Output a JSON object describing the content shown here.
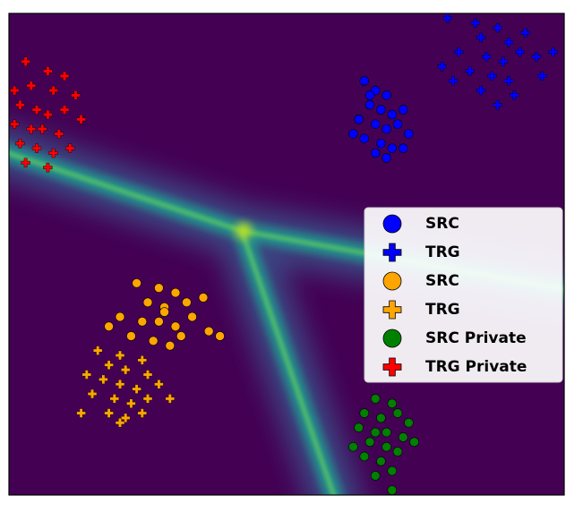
{
  "chart_data": {
    "type": "scatter",
    "xlim": [
      0,
      100
    ],
    "ylim": [
      0,
      100
    ],
    "legend": "right",
    "series": [
      {
        "name": "SRC",
        "color": "#0000ff",
        "marker": "circle",
        "x": [
          64,
          66,
          68,
          65,
          67,
          69,
          71,
          63,
          66,
          68,
          70,
          72,
          64,
          67,
          69,
          62,
          66,
          68,
          71,
          65
        ],
        "y": [
          86,
          84,
          83,
          81,
          80,
          79,
          80,
          78,
          77,
          76,
          77,
          75,
          74,
          73,
          72,
          75,
          71,
          70,
          72,
          83
        ]
      },
      {
        "name": "TRG",
        "color": "#0000ff",
        "marker": "plus",
        "x": [
          79,
          84,
          88,
          85,
          90,
          93,
          81,
          86,
          89,
          92,
          95,
          78,
          83,
          87,
          90,
          96,
          85,
          91,
          88,
          98,
          80
        ],
        "y": [
          99,
          98,
          97,
          95,
          94,
          96,
          92,
          91,
          90,
          92,
          91,
          89,
          88,
          87,
          86,
          87,
          84,
          83,
          81,
          92,
          86
        ]
      },
      {
        "name": "SRC",
        "color": "#ffa500",
        "marker": "circle",
        "x": [
          23,
          27,
          30,
          25,
          28,
          32,
          35,
          20,
          24,
          27,
          30,
          33,
          36,
          22,
          26,
          29,
          31,
          38,
          18,
          28
        ],
        "y": [
          44,
          43,
          42,
          40,
          39,
          40,
          41,
          37,
          36,
          36,
          35,
          37,
          34,
          33,
          32,
          31,
          33,
          33,
          35,
          38
        ]
      },
      {
        "name": "TRG",
        "color": "#ffa500",
        "marker": "plus",
        "x": [
          16,
          20,
          24,
          18,
          21,
          25,
          14,
          17,
          20,
          23,
          27,
          15,
          19,
          22,
          25,
          29,
          18,
          21,
          24,
          13,
          20
        ],
        "y": [
          30,
          29,
          28,
          27,
          26,
          25,
          25,
          24,
          23,
          22,
          23,
          21,
          20,
          19,
          20,
          20,
          17,
          16,
          17,
          17,
          15
        ]
      },
      {
        "name": "SRC Private",
        "color": "#008000",
        "marker": "circle",
        "x": [
          66,
          69,
          64,
          67,
          70,
          72,
          63,
          66,
          68,
          71,
          65,
          68,
          70,
          73,
          64,
          67,
          69,
          66,
          69,
          62
        ],
        "y": [
          20,
          19,
          17,
          16,
          17,
          15,
          14,
          13,
          13,
          12,
          11,
          10,
          9,
          11,
          8,
          7,
          5,
          4,
          1,
          10
        ]
      },
      {
        "name": "TRG Private",
        "color": "#ff0000",
        "marker": "plus",
        "x": [
          3,
          7,
          10,
          1,
          4,
          8,
          12,
          2,
          5,
          7,
          10,
          13,
          1,
          4,
          6,
          9,
          2,
          5,
          8,
          11,
          3,
          7
        ],
        "y": [
          90,
          88,
          87,
          84,
          85,
          84,
          83,
          81,
          80,
          79,
          80,
          78,
          77,
          76,
          76,
          75,
          73,
          72,
          71,
          72,
          69,
          68
        ]
      }
    ]
  }
}
